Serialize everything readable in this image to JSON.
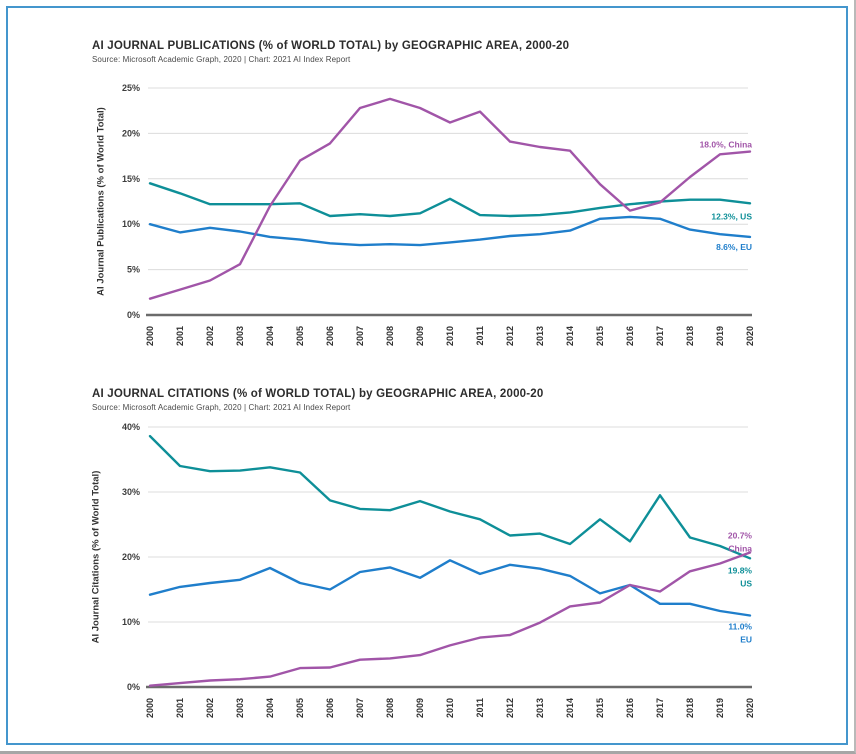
{
  "page": {
    "frame_color": "#4496cd",
    "grid_color": "#dcdcdc",
    "axis_color": "#6b6b6b",
    "accent_teal": "#0e8f98",
    "accent_blue": "#1f7ecb",
    "accent_purple": "#a155a8"
  },
  "chart_data": [
    {
      "type": "line",
      "title": "AI JOURNAL PUBLICATIONS (% of WORLD TOTAL) by GEOGRAPHIC AREA, 2000-20",
      "source": "Source: Microsoft Academic Graph, 2020 | Chart: 2021 AI Index Report",
      "ylabel": "AI Journal Publications (% of World Total)",
      "ylim": [
        0,
        25
      ],
      "ytick_labels": [
        "0%",
        "5%",
        "10%",
        "15%",
        "20%",
        "25%"
      ],
      "grid": true,
      "legend": "end-of-line annotations",
      "x": [
        "2000",
        "2001",
        "2002",
        "2003",
        "2004",
        "2005",
        "2006",
        "2007",
        "2008",
        "2009",
        "2010",
        "2011",
        "2012",
        "2013",
        "2014",
        "2015",
        "2016",
        "2017",
        "2018",
        "2019",
        "2020"
      ],
      "series": [
        {
          "name": "US",
          "color": "#0e8f98",
          "values": [
            14.5,
            13.4,
            12.2,
            12.2,
            12.2,
            12.3,
            10.9,
            11.1,
            10.9,
            11.2,
            12.8,
            11.0,
            10.9,
            11.0,
            11.3,
            11.8,
            12.2,
            12.5,
            12.7,
            12.7,
            12.3
          ],
          "end_label": {
            "lines": [
              "12.3%, US"
            ],
            "dy": [
              13
            ]
          }
        },
        {
          "name": "EU",
          "color": "#1f7ecb",
          "values": [
            10.0,
            9.1,
            9.6,
            9.2,
            8.6,
            8.3,
            7.9,
            7.7,
            7.8,
            7.7,
            8.0,
            8.3,
            8.7,
            8.9,
            9.3,
            10.6,
            10.8,
            10.6,
            9.4,
            8.9,
            8.6
          ],
          "end_label": {
            "lines": [
              "8.6%, EU"
            ],
            "dy": [
              10
            ]
          }
        },
        {
          "name": "China",
          "color": "#a155a8",
          "values": [
            1.8,
            2.8,
            3.8,
            5.6,
            12.0,
            17.0,
            18.9,
            22.8,
            23.8,
            22.8,
            21.2,
            22.4,
            19.1,
            18.5,
            18.1,
            14.4,
            11.5,
            12.4,
            15.2,
            17.7,
            18.0
          ],
          "end_label": {
            "lines": [
              "18.0%, China"
            ],
            "dy": [
              -7
            ]
          }
        }
      ]
    },
    {
      "type": "line",
      "title": "AI JOURNAL CITATIONS (% of WORLD TOTAL) by GEOGRAPHIC AREA, 2000-20",
      "source": "Source: Microsoft Academic Graph, 2020 | Chart: 2021 AI Index Report",
      "ylabel": "AI Journal Citations (% of World Total)",
      "ylim": [
        0,
        40
      ],
      "ytick_labels": [
        "0%",
        "10%",
        "20%",
        "30%",
        "40%"
      ],
      "grid": true,
      "legend": "end-of-line annotations",
      "x": [
        "2000",
        "2001",
        "2002",
        "2003",
        "2004",
        "2005",
        "2006",
        "2007",
        "2008",
        "2009",
        "2010",
        "2011",
        "2012",
        "2013",
        "2014",
        "2015",
        "2016",
        "2017",
        "2018",
        "2019",
        "2020"
      ],
      "series": [
        {
          "name": "US",
          "color": "#0e8f98",
          "values": [
            38.6,
            34.0,
            33.2,
            33.3,
            33.8,
            33.0,
            28.7,
            27.4,
            27.2,
            28.6,
            27.0,
            25.8,
            23.3,
            23.6,
            22.0,
            25.8,
            22.4,
            29.5,
            23.0,
            21.7,
            19.8
          ],
          "end_label": {
            "lines": [
              "19.8%",
              "US"
            ],
            "dy": [
              12,
              25
            ]
          }
        },
        {
          "name": "EU",
          "color": "#1f7ecb",
          "values": [
            14.2,
            15.4,
            16.0,
            16.5,
            18.3,
            16.0,
            15.0,
            17.7,
            18.4,
            16.8,
            19.5,
            17.4,
            18.8,
            18.2,
            17.1,
            14.4,
            15.7,
            12.8,
            12.8,
            11.7,
            11.0
          ],
          "end_label": {
            "lines": [
              "11.0%",
              "EU"
            ],
            "dy": [
              11,
              24
            ]
          }
        },
        {
          "name": "China",
          "color": "#a155a8",
          "values": [
            0.2,
            0.6,
            1.0,
            1.2,
            1.6,
            2.9,
            3.0,
            4.2,
            4.4,
            4.9,
            6.4,
            7.6,
            8.0,
            9.9,
            12.4,
            13.0,
            15.7,
            14.7,
            17.8,
            19.0,
            20.7
          ],
          "end_label": {
            "lines": [
              "20.7%",
              "China"
            ],
            "dy": [
              -17,
              -4
            ]
          }
        }
      ]
    }
  ]
}
